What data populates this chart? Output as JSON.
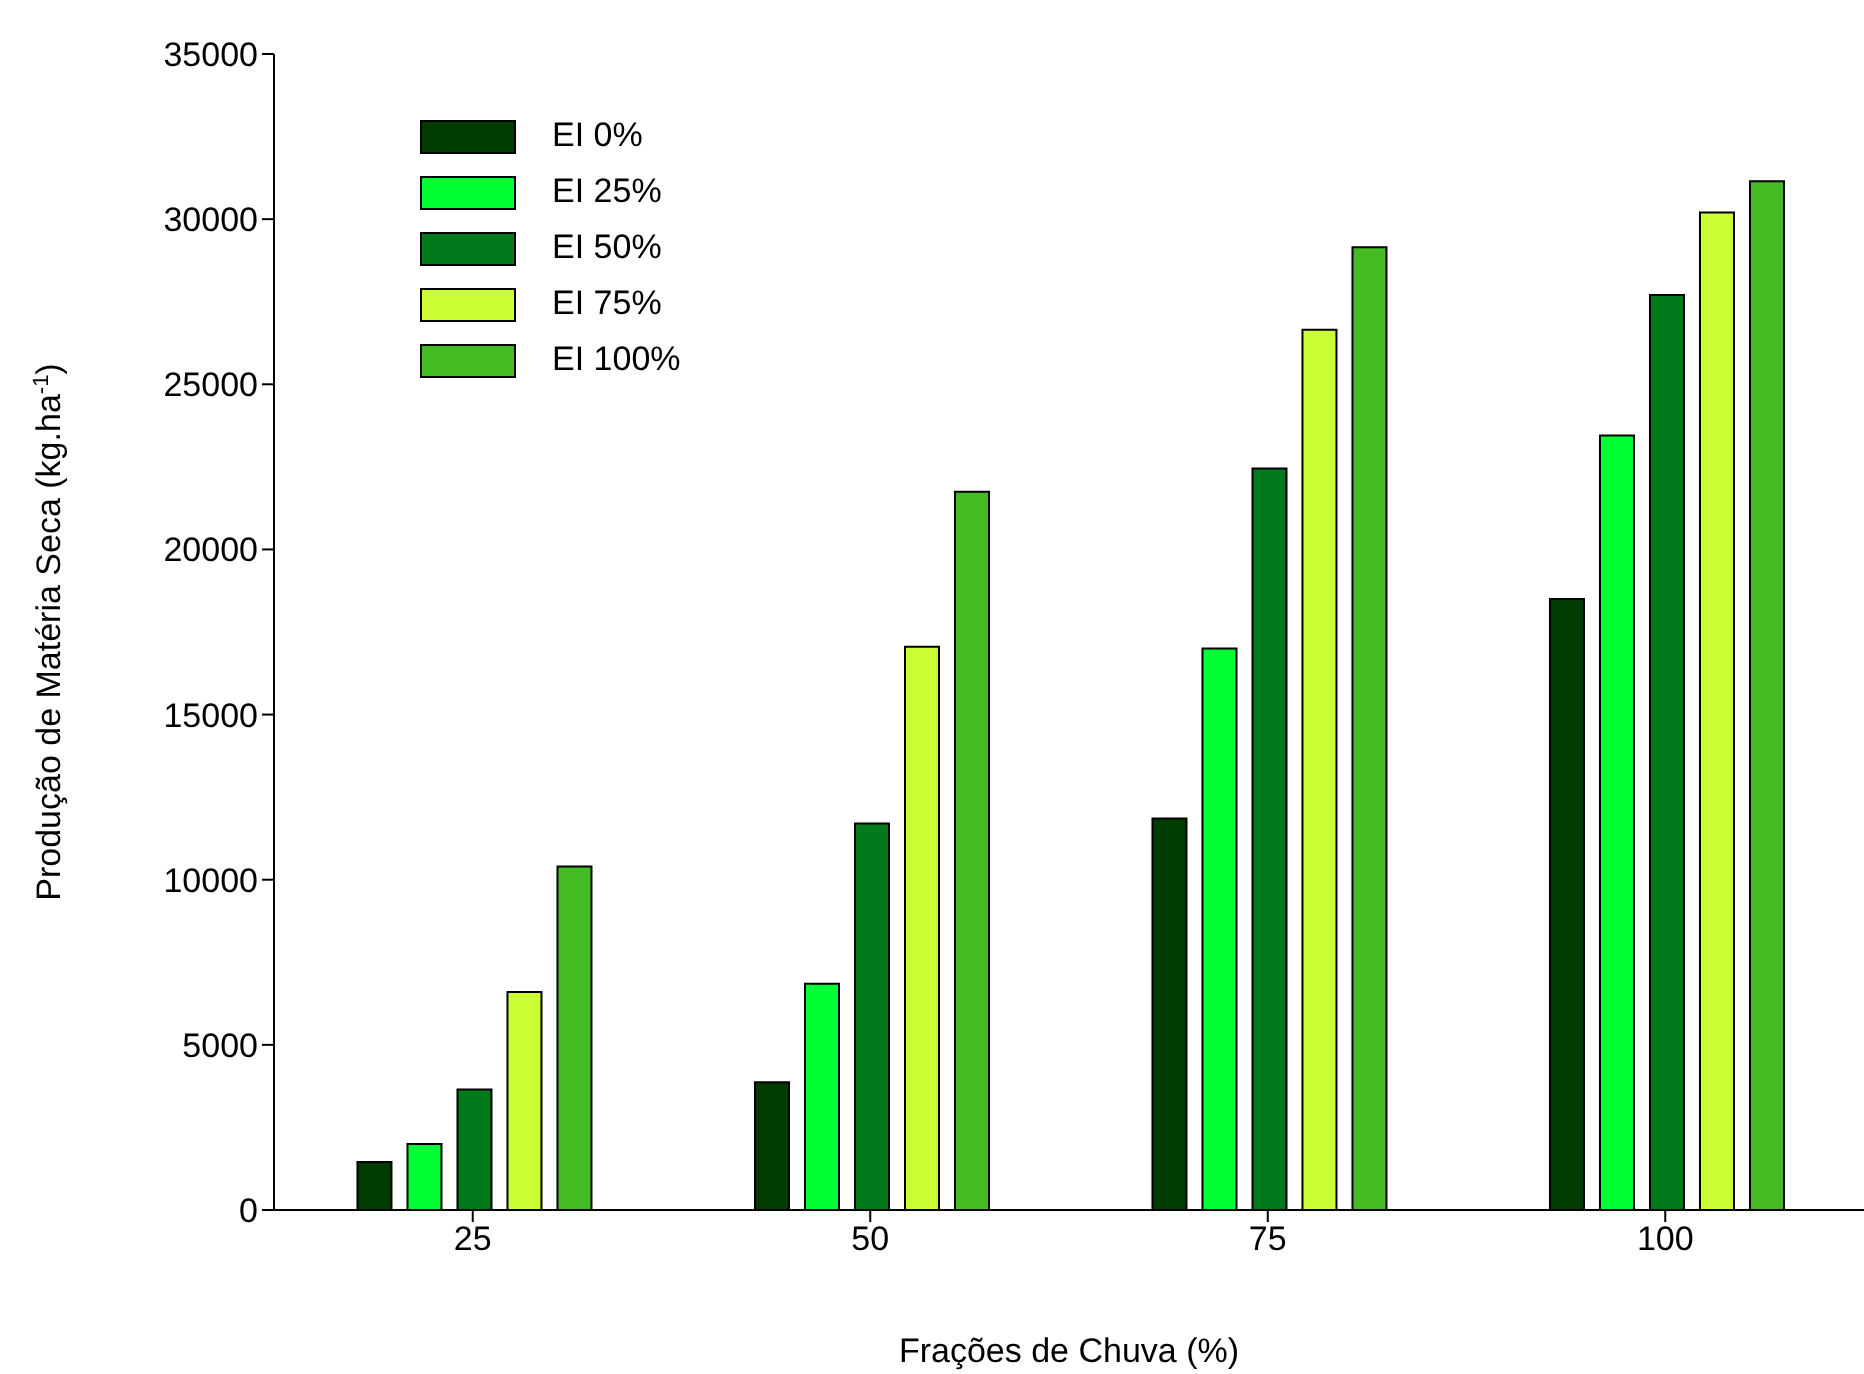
{
  "chart_data": {
    "type": "bar",
    "xlabel": "Frações de Chuva (%)",
    "ylabel": "Produção de Matéria Seca (kg.ha$^{-1}$)",
    "categories": [
      "25",
      "50",
      "75",
      "100"
    ],
    "series": [
      {
        "name": "EI 0%",
        "color": "#003c00",
        "values": [
          1450,
          3870,
          11850,
          18500
        ]
      },
      {
        "name": "EI 25%",
        "color": "#00ff33",
        "values": [
          2000,
          6850,
          17000,
          23450
        ]
      },
      {
        "name": "EI 50%",
        "color": "#007a1a",
        "values": [
          3650,
          11700,
          22450,
          27700
        ]
      },
      {
        "name": "EI 75%",
        "color": "#ccff33",
        "values": [
          6600,
          17050,
          26650,
          30200
        ]
      },
      {
        "name": "EI 100%",
        "color": "#44bb22",
        "values": [
          10400,
          21750,
          29150,
          31150
        ]
      }
    ],
    "ylim": [
      0,
      35000
    ],
    "yticks": [
      0,
      5000,
      10000,
      15000,
      20000,
      25000,
      30000,
      35000
    ],
    "grid": false,
    "legend": "top left"
  }
}
